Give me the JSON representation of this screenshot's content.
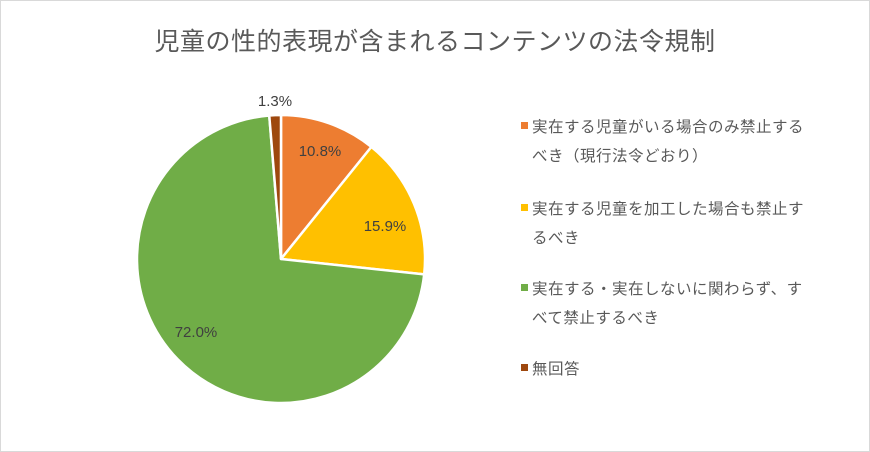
{
  "chart_data": {
    "type": "pie",
    "title": "児童の性的表現が含まれるコンテンツの法令規制",
    "categories": [
      "実在する児童がいる場合のみ禁止するべき（現行法令どおり）",
      "実在する児童を加工した場合も禁止するべき",
      "実在する・実在しないに関わらず、すべて禁止するべき",
      "無回答"
    ],
    "values": [
      10.8,
      15.9,
      72.0,
      1.3
    ],
    "labels": [
      "10.8%",
      "15.9%",
      "72.0%",
      "1.3%"
    ],
    "colors": [
      "#ED7D31",
      "#FFC000",
      "#70AD47",
      "#9E480E"
    ],
    "legend_position": "right"
  },
  "legend": {
    "items": [
      {
        "line1": "実在する児童がいる場合のみ禁止する",
        "line2": "べき（現行法令どおり）"
      },
      {
        "line1": "実在する児童を加工した場合も禁止す",
        "line2": "るべき"
      },
      {
        "line1": "実在する・実在しないに関わらず、す",
        "line2": "べて禁止するべき"
      },
      {
        "line1": "無回答",
        "line2": ""
      }
    ]
  }
}
